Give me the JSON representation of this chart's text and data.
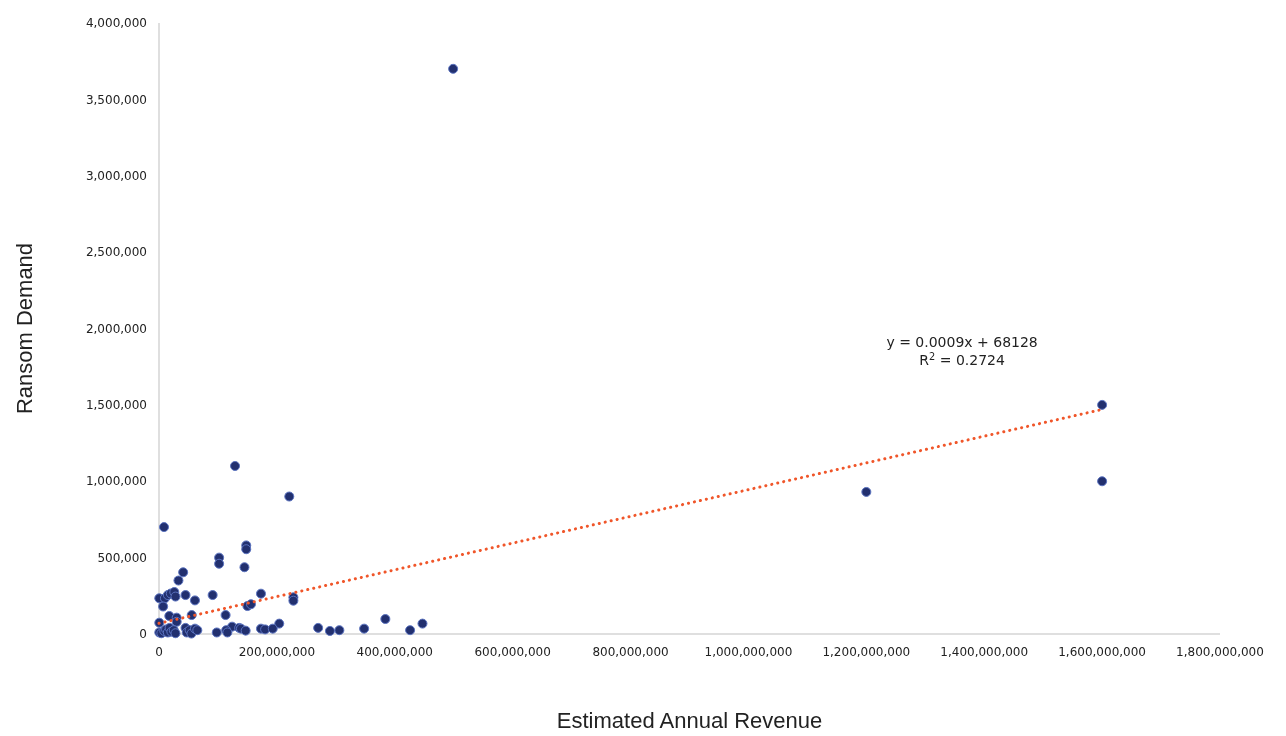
{
  "chart_data": {
    "type": "scatter",
    "xlabel": "Estimated Annual Revenue",
    "ylabel": "Ransom Demand",
    "xlim": [
      0,
      1800000000
    ],
    "xticks": [
      {
        "value": 0,
        "label": "0"
      },
      {
        "value": 200000000,
        "label": "200,000,000"
      },
      {
        "value": 400000000,
        "label": "400,000,000"
      },
      {
        "value": 600000000,
        "label": "600,000,000"
      },
      {
        "value": 800000000,
        "label": "800,000,000"
      },
      {
        "value": 1000000000,
        "label": "1,000,000,000"
      },
      {
        "value": 1200000000,
        "label": "1,200,000,000"
      },
      {
        "value": 1400000000,
        "label": "1,400,000,000"
      },
      {
        "value": 1600000000,
        "label": "1,600,000,000"
      },
      {
        "value": 1800000000,
        "label": "1,800,000,000"
      }
    ],
    "ylim": [
      0,
      4000000
    ],
    "yticks": [
      {
        "value": 0,
        "label": "0"
      },
      {
        "value": 500000,
        "label": "500,000"
      },
      {
        "value": 1000000,
        "label": "1,000,000"
      },
      {
        "value": 1500000,
        "label": "1,500,000"
      },
      {
        "value": 2000000,
        "label": "2,000,000"
      },
      {
        "value": 2500000,
        "label": "2,500,000"
      },
      {
        "value": 3000000,
        "label": "3,000,000"
      },
      {
        "value": 3500000,
        "label": "3,500,000"
      },
      {
        "value": 4000000,
        "label": "4,000,000"
      }
    ],
    "grid": false,
    "marker": "circle",
    "annotations": [
      "y = 0.0009x + 68128",
      "R$^{2}$ = 0.2724"
    ],
    "series": [
      {
        "color": "#22306f",
        "x": [
          129000000,
          221000000,
          8500000,
          148000000,
          148000000,
          102000000,
          102000000,
          145000000,
          41000000,
          33000000,
          500000,
          10000000,
          7000000,
          15000000,
          20000000,
          26000000,
          28000000,
          45000000,
          61000000,
          91000000,
          173000000,
          228000000,
          228000000,
          150000000,
          156000000,
          17500000,
          30000000,
          30000000,
          55500000,
          113000000,
          500000,
          384000000,
          447000000,
          204000000,
          173000000,
          180000000,
          193000000,
          270000000,
          290000000,
          306000000,
          348000000,
          426000000,
          124000000,
          136000000,
          139000000,
          147000000,
          98000000,
          114000000,
          116000000,
          45000000,
          47000000,
          52000000,
          55000000,
          61000000,
          65000000,
          500000,
          4000000,
          9000000,
          12000000,
          15000000,
          18000000,
          21000000,
          25000000,
          28000000,
          499000000,
          1200000000,
          1600000000,
          1600000000
        ],
        "values": [
          1100000,
          900000,
          700000,
          580000,
          555000,
          500000,
          460000,
          437000,
          404000,
          350000,
          234000,
          234000,
          180000,
          255000,
          265000,
          275000,
          245000,
          255000,
          220000,
          255000,
          264000,
          240000,
          218000,
          183000,
          195000,
          118000,
          107000,
          80000,
          124000,
          124000,
          74000,
          98000,
          68000,
          68000,
          35000,
          30000,
          35000,
          40000,
          20000,
          25000,
          35000,
          25000,
          48000,
          40000,
          35000,
          22000,
          10000,
          25000,
          10000,
          40000,
          10000,
          25000,
          3000,
          35000,
          25000,
          10000,
          5000,
          20000,
          30000,
          10000,
          40000,
          15000,
          25000,
          5000,
          3700000,
          930000,
          1500000,
          1000000
        ]
      },
      {
        "type": "line",
        "color": "#f0562a",
        "line_style": "dotted",
        "marker": "none",
        "x": [
          0,
          1600000000
        ],
        "values": [
          70000,
          1470000
        ]
      }
    ]
  }
}
